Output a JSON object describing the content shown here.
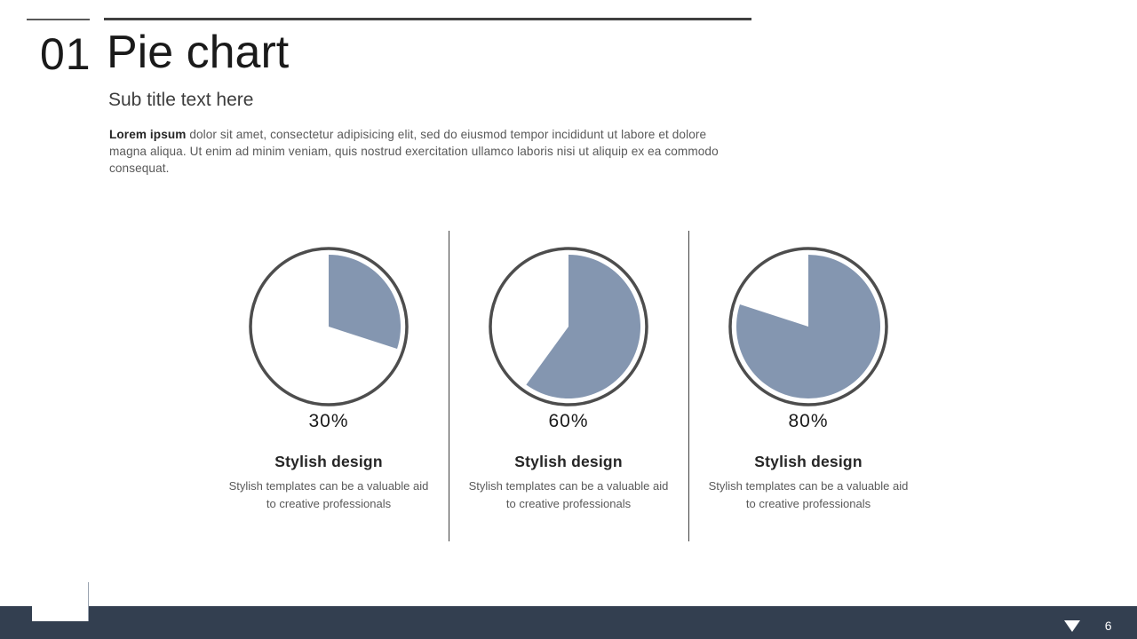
{
  "slide": {
    "section_number": "01",
    "title": "Pie chart",
    "subtitle": "Sub title text here",
    "body_lead": "Lorem ipsum",
    "body_rest": " dolor sit amet, consectetur adipisicing elit, sed do eiusmod tempor incididunt ut labore et dolore magna aliqua. Ut enim ad minim veniam, quis nostrud exercitation ullamco laboris nisi ut aliquip ex ea commodo consequat.",
    "header_icon": "businessman-climbing-stairs"
  },
  "columns": [
    {
      "value": 30,
      "percent": "30%",
      "heading": "Stylish design",
      "caption": "Stylish templates can be a valuable aid to creative professionals"
    },
    {
      "value": 60,
      "percent": "60%",
      "heading": "Stylish design",
      "caption": "Stylish templates can be a valuable aid to creative professionals"
    },
    {
      "value": 80,
      "percent": "80%",
      "heading": "Stylish design",
      "caption": "Stylish templates can be a valuable aid to creative professionals"
    }
  ],
  "footer": {
    "page_number": "6",
    "nav_icon": "down-triangle"
  },
  "colors": {
    "accent": "#8496B0",
    "ring": "#4d4d4d",
    "footer_bar": "#333F50",
    "text_dark": "#1a1a1a",
    "text_body": "#595959"
  },
  "chart_data": [
    {
      "type": "pie",
      "title": "30%",
      "labels": [
        "highlight",
        "remainder"
      ],
      "values": [
        30,
        70
      ],
      "colors": [
        "#8496B0",
        "#FFFFFF"
      ],
      "start_angle": "12 o'clock",
      "direction": "clockwise",
      "legend": "none"
    },
    {
      "type": "pie",
      "title": "60%",
      "labels": [
        "highlight",
        "remainder"
      ],
      "values": [
        60,
        40
      ],
      "colors": [
        "#8496B0",
        "#FFFFFF"
      ],
      "start_angle": "12 o'clock",
      "direction": "clockwise",
      "legend": "none"
    },
    {
      "type": "pie",
      "title": "80%",
      "labels": [
        "highlight",
        "remainder"
      ],
      "values": [
        80,
        20
      ],
      "colors": [
        "#8496B0",
        "#FFFFFF"
      ],
      "start_angle": "12 o'clock",
      "direction": "clockwise",
      "legend": "none"
    }
  ]
}
